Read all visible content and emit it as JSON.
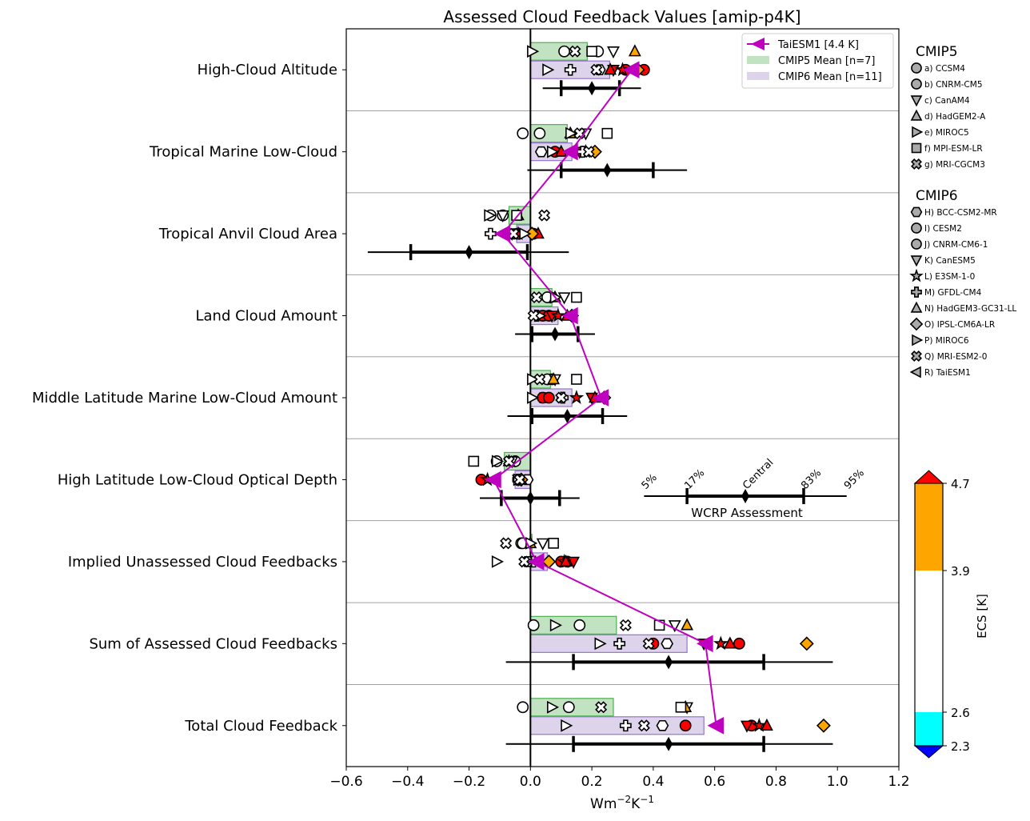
{
  "chart_data": {
    "type": "scatter",
    "title": "Assessed Cloud Feedback Values [amip-p4K]",
    "xlabel": "Wm$^{-2}$K$^{-1}$",
    "xlabel_display": {
      "base": "Wm",
      "exp1": "−2",
      "mid": "K",
      "exp2": "−1"
    },
    "xlim": [
      -0.6,
      1.2
    ],
    "xticks": [
      -0.6,
      -0.4,
      -0.2,
      0.0,
      0.2,
      0.4,
      0.6,
      0.8,
      1.0,
      1.2
    ],
    "xtick_labels": [
      "−0.6",
      "−0.4",
      "−0.2",
      "0.0",
      "0.2",
      "0.4",
      "0.6",
      "0.8",
      "1.0",
      "1.2"
    ],
    "grid": "horizontal separators between categories",
    "categories": [
      "High-Cloud Altitude",
      "Tropical Marine Low-Cloud",
      "Tropical Anvil Cloud Area",
      "Land Cloud Amount",
      "Middle Latitude Marine Low-Cloud Amount",
      "High Latitude Low-Cloud Optical Depth",
      "Implied Unassessed Cloud Feedbacks",
      "Sum of Assessed Cloud Feedbacks",
      "Total Cloud Feedback"
    ],
    "legend": {
      "placement": "top-right",
      "entries": [
        {
          "label": "TaiESM1 [4.4 K]",
          "color": "#c000c0",
          "kind": "line-triangle-left"
        },
        {
          "label": "CMIP5 Mean [n=7]",
          "color": "#c2e3c2",
          "kind": "patch"
        },
        {
          "label": "CMIP6 Mean [n=11]",
          "color": "#ddd3ea",
          "kind": "patch"
        }
      ]
    },
    "cmip5_means": [
      0.185,
      0.12,
      -0.07,
      0.07,
      0.065,
      -0.085,
      0.005,
      0.28,
      0.27
    ],
    "cmip6_means": [
      0.258,
      0.135,
      -0.045,
      0.09,
      0.135,
      -0.05,
      0.055,
      0.51,
      0.565
    ],
    "taiesm1": [
      0.33,
      0.13,
      -0.09,
      0.13,
      0.23,
      -0.12,
      0.02,
      0.57,
      0.605
    ],
    "wcrp_assessment": {
      "label": "WCRP Assessment",
      "percentile_labels": [
        "5%",
        "17%",
        "Central",
        "83%",
        "95%"
      ],
      "example": {
        "p5": 0.37,
        "p17": 0.51,
        "central": 0.7,
        "p83": 0.89,
        "p95": 1.03
      },
      "rows": [
        {
          "p5": 0.04,
          "p17": 0.1,
          "central": 0.2,
          "p83": 0.29,
          "p95": 0.36
        },
        {
          "p5": -0.01,
          "p17": 0.1,
          "central": 0.25,
          "p83": 0.4,
          "p95": 0.51
        },
        {
          "p5": -0.53,
          "p17": -0.39,
          "central": -0.2,
          "p83": -0.01,
          "p95": 0.125
        },
        {
          "p5": -0.05,
          "p17": 0.005,
          "central": 0.08,
          "p83": 0.155,
          "p95": 0.21
        },
        {
          "p5": -0.075,
          "p17": 0.005,
          "central": 0.12,
          "p83": 0.235,
          "p95": 0.315
        },
        {
          "p5": -0.165,
          "p17": -0.095,
          "central": 0.0,
          "p83": 0.095,
          "p95": 0.16
        },
        null,
        {
          "p5": -0.08,
          "p17": 0.14,
          "central": 0.45,
          "p83": 0.76,
          "p95": 0.985
        },
        {
          "p5": -0.08,
          "p17": 0.14,
          "central": 0.45,
          "p83": 0.76,
          "p95": 0.985
        }
      ]
    },
    "cmip5_models": [
      {
        "label": "a) CCSM4",
        "marker": "circle",
        "ecs_color": "white",
        "values": [
          0.11,
          0.03,
          -0.13,
          0.065,
          0.07,
          -0.11,
          -0.03,
          0.16,
          0.125
        ]
      },
      {
        "label": "b) CNRM-CM5",
        "marker": "circle",
        "ecs_color": "white",
        "values": [
          0.22,
          -0.025,
          -0.09,
          0.055,
          0.055,
          -0.05,
          -0.025,
          0.01,
          -0.025
        ]
      },
      {
        "label": "c) CanAM4",
        "marker": "triangle-down",
        "ecs_color": "white",
        "values": [
          0.27,
          0.18,
          -0.09,
          0.11,
          0.08,
          -0.06,
          0.04,
          0.47,
          0.51
        ]
      },
      {
        "label": "d) HadGEM2-A",
        "marker": "triangle-up",
        "ecs_color": "orange",
        "values": [
          0.34,
          0.13,
          -0.04,
          0.08,
          0.075,
          -0.07,
          0.0,
          0.51,
          0.505
        ]
      },
      {
        "label": "e) MIROC5",
        "marker": "triangle-right",
        "ecs_color": "white",
        "values": [
          0.005,
          0.13,
          -0.135,
          0.08,
          0.005,
          -0.11,
          0.0,
          0.08,
          0.07
        ]
      },
      {
        "label": "f) MPI-ESM-LR",
        "marker": "square",
        "ecs_color": "white",
        "values": [
          0.2,
          0.25,
          -0.045,
          0.15,
          0.15,
          -0.185,
          0.075,
          0.42,
          0.49
        ]
      },
      {
        "label": "g) MRI-CGCM3",
        "marker": "cross",
        "ecs_color": "white",
        "values": [
          0.145,
          0.16,
          0.045,
          0.02,
          0.03,
          -0.07,
          -0.08,
          0.31,
          0.23
        ]
      }
    ],
    "cmip6_models": [
      {
        "label": "H) BCC-CSM2-MR",
        "marker": "hexagon",
        "ecs_color": "white",
        "values": [
          0.225,
          0.035,
          -0.05,
          0.04,
          0.04,
          -0.01,
          -0.01,
          0.445,
          0.43
        ]
      },
      {
        "label": "I) CESM2",
        "marker": "circle",
        "ecs_color": "red",
        "values": [
          0.37,
          0.08,
          0.01,
          0.04,
          0.04,
          -0.16,
          0.1,
          0.4,
          0.505
        ]
      },
      {
        "label": "J) CNRM-CM6-1",
        "marker": "circle",
        "ecs_color": "red",
        "values": [
          0.31,
          0.17,
          -0.04,
          0.06,
          0.06,
          -0.04,
          0.12,
          0.68,
          0.72
        ]
      },
      {
        "label": "K) CanESM5",
        "marker": "triangle-down",
        "ecs_color": "red",
        "values": [
          0.27,
          0.16,
          -0.06,
          0.07,
          0.2,
          -0.04,
          0.14,
          0.565,
          0.705
        ]
      },
      {
        "label": "L) E3SM-1-0",
        "marker": "star",
        "ecs_color": "red",
        "values": [
          0.3,
          0.18,
          -0.04,
          0.09,
          0.15,
          -0.14,
          0.11,
          0.62,
          0.745
        ]
      },
      {
        "label": "M) GFDL-CM4",
        "marker": "plus",
        "ecs_color": "white",
        "values": [
          0.13,
          0.17,
          -0.13,
          0.02,
          0.105,
          -0.04,
          0.01,
          0.29,
          0.31
        ]
      },
      {
        "label": "N) HadGEM3-GC31-LL",
        "marker": "triangle-up",
        "ecs_color": "red",
        "values": [
          0.26,
          0.1,
          0.025,
          0.12,
          0.21,
          -0.03,
          0.115,
          0.65,
          0.77
        ]
      },
      {
        "label": "O) IPSL-CM6A-LR",
        "marker": "diamond",
        "ecs_color": "orange",
        "values": [
          0.35,
          0.21,
          0.005,
          0.135,
          0.24,
          -0.03,
          0.06,
          0.9,
          0.955
        ]
      },
      {
        "label": "P) MIROC6",
        "marker": "triangle-right",
        "ecs_color": "white",
        "values": [
          0.055,
          0.07,
          -0.02,
          0.03,
          0.005,
          -0.04,
          -0.11,
          0.225,
          0.115
        ]
      },
      {
        "label": "Q) MRI-ESM2-0",
        "marker": "cross",
        "ecs_color": "white",
        "values": [
          0.215,
          0.19,
          -0.055,
          0.01,
          0.1,
          -0.035,
          -0.02,
          0.385,
          0.37
        ]
      },
      {
        "label": "R) TaiESM1",
        "marker": "triangle-left",
        "ecs_color": "magenta",
        "values": [
          0.33,
          0.13,
          -0.09,
          0.13,
          0.23,
          -0.12,
          0.02,
          0.57,
          0.605
        ]
      }
    ],
    "group_titles": {
      "cmip5": "CMIP5",
      "cmip6": "CMIP6"
    },
    "colorbar": {
      "label": "ECS [K]",
      "ticks": [
        2.3,
        2.6,
        3.9,
        4.7
      ],
      "tick_labels": [
        "2.3",
        "2.6",
        "3.9",
        "4.7"
      ],
      "bands": [
        {
          "from": "below",
          "to": 2.3,
          "color": "#0000ff"
        },
        {
          "from": 2.3,
          "to": 2.6,
          "color": "#00ffff"
        },
        {
          "from": 2.6,
          "to": 3.9,
          "color": "#ffffff"
        },
        {
          "from": 3.9,
          "to": 4.7,
          "color": "#ffa500"
        },
        {
          "from": 4.7,
          "to": "above",
          "color": "#ff0000"
        }
      ]
    },
    "colors": {
      "cmip5_bar": "#c2e3c2",
      "cmip5_bar_edge": "#4caf50",
      "cmip6_bar": "#ddd3ea",
      "cmip6_bar_edge": "#9575cd",
      "taiesm1": "#c000c0",
      "ecs_white": "#ffffff",
      "ecs_orange": "#ffa500",
      "ecs_red": "#ff0000"
    }
  }
}
